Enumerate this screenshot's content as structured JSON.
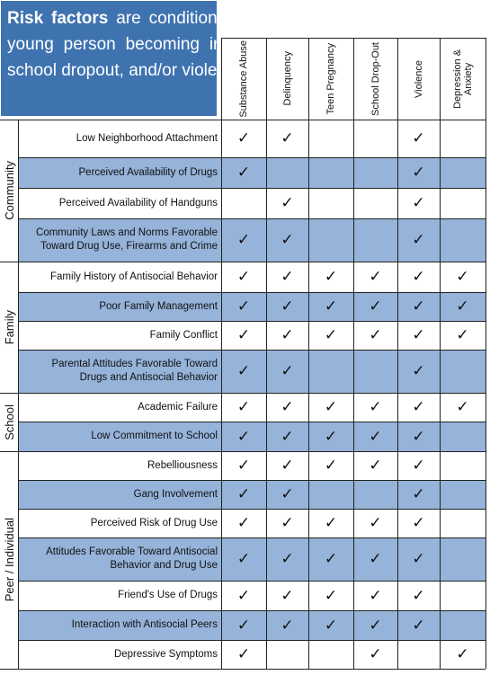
{
  "intro": {
    "lead": "Risk factors",
    "rest": " are conditions that increase the likelihood of a young person becoming involved in drug use, delinquency, school dropout, and/or violence."
  },
  "colors": {
    "header_bg": "#3f73b0",
    "shade": "#96b3d9",
    "line": "#222222"
  },
  "check_glyph": "✓",
  "columns": [
    "Substance Abuse",
    "Delinquency",
    "Teen Pregnancy",
    "School Drop-Out",
    "Violence",
    "Depression & Anxiety"
  ],
  "categories": [
    {
      "label": "Community",
      "rows": 4
    },
    {
      "label": "Family",
      "rows": 4
    },
    {
      "label": "School",
      "rows": 2
    },
    {
      "label": "Peer / Individual",
      "rows": 7
    }
  ],
  "rows": [
    {
      "factor": "Low Neighborhood Attachment",
      "checks": [
        1,
        1,
        0,
        0,
        1,
        0
      ],
      "shaded": false
    },
    {
      "factor": "Perceived Availability of Drugs",
      "checks": [
        1,
        0,
        0,
        0,
        1,
        0
      ],
      "shaded": true
    },
    {
      "factor": "Perceived Availability of Handguns",
      "checks": [
        0,
        1,
        0,
        0,
        1,
        0
      ],
      "shaded": false
    },
    {
      "factor": "Community Laws and Norms Favorable\nToward  Drug Use, Firearms and Crime",
      "checks": [
        1,
        1,
        0,
        0,
        1,
        0
      ],
      "shaded": true
    },
    {
      "factor": "Family History of Antisocial Behavior",
      "checks": [
        1,
        1,
        1,
        1,
        1,
        1
      ],
      "shaded": false
    },
    {
      "factor": "Poor Family Management",
      "checks": [
        1,
        1,
        1,
        1,
        1,
        1
      ],
      "shaded": true
    },
    {
      "factor": "Family Conflict",
      "checks": [
        1,
        1,
        1,
        1,
        1,
        1
      ],
      "shaded": false
    },
    {
      "factor": "Parental Attitudes Favorable Toward\nDrugs and Antisocial Behavior",
      "checks": [
        1,
        1,
        0,
        0,
        1,
        0
      ],
      "shaded": true
    },
    {
      "factor": "Academic Failure",
      "checks": [
        1,
        1,
        1,
        1,
        1,
        1
      ],
      "shaded": false
    },
    {
      "factor": "Low Commitment to School",
      "checks": [
        1,
        1,
        1,
        1,
        1,
        0
      ],
      "shaded": true
    },
    {
      "factor": "Rebelliousness",
      "checks": [
        1,
        1,
        1,
        1,
        1,
        0
      ],
      "shaded": false
    },
    {
      "factor": "Gang Involvement",
      "checks": [
        1,
        1,
        0,
        0,
        1,
        0
      ],
      "shaded": true
    },
    {
      "factor": "Perceived Risk of Drug Use",
      "checks": [
        1,
        1,
        1,
        1,
        1,
        0
      ],
      "shaded": false
    },
    {
      "factor": "Attitudes Favorable Toward Antisocial\nBehavior and Drug Use",
      "checks": [
        1,
        1,
        1,
        1,
        1,
        0
      ],
      "shaded": true
    },
    {
      "factor": "Friend's Use of Drugs",
      "checks": [
        1,
        1,
        1,
        1,
        1,
        0
      ],
      "shaded": false
    },
    {
      "factor": "Interaction with Antisocial Peers",
      "checks": [
        1,
        1,
        1,
        1,
        1,
        0
      ],
      "shaded": true
    },
    {
      "factor": "Depressive Symptoms",
      "checks": [
        1,
        0,
        0,
        1,
        0,
        1
      ],
      "shaded": false
    }
  ]
}
